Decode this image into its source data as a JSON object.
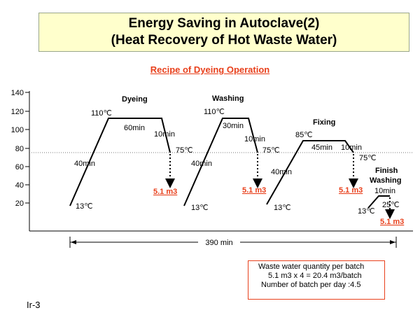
{
  "title": {
    "line1": "Energy Saving in Autoclave(2)",
    "line2": "(Heat Recovery of Hot Waste Water)"
  },
  "subtitle": "Recipe of Dyeing Operation",
  "y_ticks": [
    "140",
    "120",
    "100",
    "80",
    "60",
    "40",
    "20"
  ],
  "steps": {
    "dyeing": {
      "name": "Dyeing",
      "start_temp": "13℃",
      "rise_time": "40min",
      "peak_temp": "110℃",
      "hold_time": "60min",
      "drop_time": "10min",
      "end_temp": "75℃",
      "waste": "5.1 m3"
    },
    "washing": {
      "name": "Washing",
      "start_temp": "13℃",
      "rise_time": "40min",
      "peak_temp": "110℃",
      "hold_time": "30min",
      "drop_time": "10min",
      "end_temp": "75℃",
      "waste": "5.1 m3"
    },
    "fixing": {
      "name": "Fixing",
      "start_temp": "13℃",
      "rise_time": "40min",
      "peak_temp": "85℃",
      "hold_time": "45min",
      "drop_time": "10min",
      "end_temp": "75℃",
      "waste": "5.1 m3"
    },
    "finish_washing": {
      "name_line1": "Finish",
      "name_line2": "Washing",
      "start_temp": "13℃",
      "hold_time": "10min",
      "end_temp": "25℃",
      "waste": "5.1 m3"
    }
  },
  "total_time": "390 min",
  "info": {
    "line1": "Waste water quantity per batch",
    "line2": "5.1 m3 x 4 = 20.4 m3/batch",
    "line3": "Number of batch per day  :4.5"
  },
  "footer": "Ir-3"
}
